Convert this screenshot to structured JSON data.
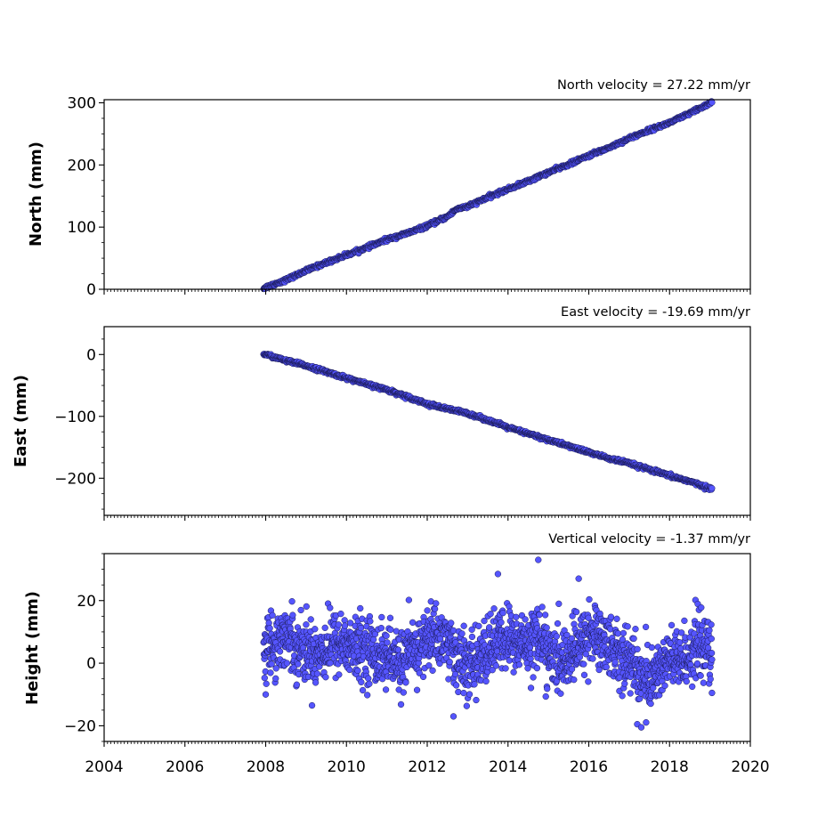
{
  "chart_data": [
    {
      "type": "scatter",
      "title": "North velocity = 27.22 mm/yr",
      "xlabel": "",
      "ylabel": "North (mm)",
      "xlim": [
        2004,
        2020
      ],
      "ylim": [
        0,
        305
      ],
      "yticks": [
        0,
        100,
        200,
        300
      ],
      "ytick_labels": [
        "0",
        "100",
        "200",
        "300"
      ],
      "grid": false,
      "marker_color": "#5555ff",
      "marker_edge": "#1a1a55",
      "series": [
        {
          "x": [
            2007.95,
            2008.5,
            2009.0,
            2009.5,
            2010.0,
            2010.5,
            2011.0,
            2011.5,
            2012.0,
            2012.5,
            2012.75,
            2013.0,
            2013.5,
            2014.0,
            2014.5,
            2015.0,
            2015.5,
            2016.0,
            2016.5,
            2017.0,
            2017.5,
            2018.0,
            2018.5,
            2019.05
          ],
          "y": [
            2,
            15,
            30,
            43,
            55,
            67,
            80,
            90,
            102,
            117,
            130,
            133,
            148,
            161,
            174,
            188,
            201,
            215,
            228,
            243,
            256,
            268,
            283,
            301
          ]
        }
      ]
    },
    {
      "type": "scatter",
      "title": "East velocity = -19.69 mm/yr",
      "xlabel": "",
      "ylabel": "East (mm)",
      "xlim": [
        2004,
        2020
      ],
      "ylim": [
        -260,
        45
      ],
      "yticks": [
        0,
        -100,
        -200
      ],
      "ytick_labels": [
        "0",
        "−100",
        "−200"
      ],
      "grid": false,
      "marker_color": "#5555ff",
      "marker_edge": "#1a1a55",
      "series": [
        {
          "x": [
            2007.95,
            2008.5,
            2009.0,
            2009.5,
            2010.0,
            2010.5,
            2011.0,
            2011.5,
            2012.0,
            2012.5,
            2013.0,
            2013.5,
            2014.0,
            2014.5,
            2015.0,
            2015.5,
            2016.0,
            2016.5,
            2017.0,
            2017.5,
            2018.0,
            2018.5,
            2019.05
          ],
          "y": [
            1,
            -10,
            -18,
            -28,
            -38,
            -48,
            -57,
            -68,
            -80,
            -88,
            -95,
            -106,
            -118,
            -128,
            -138,
            -148,
            -158,
            -168,
            -176,
            -186,
            -196,
            -205,
            -218
          ]
        }
      ]
    },
    {
      "type": "scatter",
      "title": "Vertical velocity = -1.37 mm/yr",
      "xlabel": "",
      "ylabel": "Height (mm)",
      "xlim": [
        2004,
        2020
      ],
      "ylim": [
        -25,
        35
      ],
      "yticks": [
        20,
        0,
        -20
      ],
      "ytick_labels": [
        "20",
        "0",
        "−20"
      ],
      "xticks": [
        2004,
        2006,
        2008,
        2010,
        2012,
        2014,
        2016,
        2018,
        2020
      ],
      "xtick_labels": [
        "2004",
        "2006",
        "2008",
        "2010",
        "2012",
        "2014",
        "2016",
        "2018",
        "2020"
      ],
      "grid": false,
      "marker_color": "#5555ff",
      "marker_edge": "#1a1a55",
      "series": [
        {
          "x": [
            2007.95,
            2008.25,
            2008.5,
            2008.75,
            2009.0,
            2009.25,
            2009.5,
            2009.75,
            2010.0,
            2010.25,
            2010.5,
            2010.75,
            2011.0,
            2011.25,
            2011.5,
            2011.75,
            2012.0,
            2012.25,
            2012.5,
            2012.75,
            2013.0,
            2013.25,
            2013.5,
            2013.75,
            2014.0,
            2014.25,
            2014.5,
            2014.75,
            2015.0,
            2015.25,
            2015.5,
            2015.75,
            2016.0,
            2016.25,
            2016.5,
            2016.75,
            2017.0,
            2017.25,
            2017.5,
            2017.75,
            2018.0,
            2018.25,
            2018.5,
            2018.75,
            2019.05
          ],
          "y": [
            5,
            7,
            9,
            6,
            4,
            3,
            5,
            7,
            6,
            4,
            5,
            3,
            2,
            0,
            2,
            4,
            8,
            9,
            7,
            2,
            -2,
            1,
            4,
            7,
            8,
            6,
            7,
            9,
            3,
            0,
            2,
            5,
            10,
            8,
            6,
            3,
            1,
            -3,
            -6,
            -2,
            1,
            0,
            3,
            7,
            2
          ],
          "spread": 5,
          "outliers": [
            [
              2013.75,
              28.5
            ],
            [
              2014.75,
              33
            ],
            [
              2015.75,
              27
            ],
            [
              2017.2,
              -19.5
            ],
            [
              2017.3,
              -20.5
            ],
            [
              2012.65,
              -17
            ],
            [
              2008.0,
              -10
            ],
            [
              2019.05,
              -9.5
            ]
          ]
        }
      ]
    }
  ]
}
